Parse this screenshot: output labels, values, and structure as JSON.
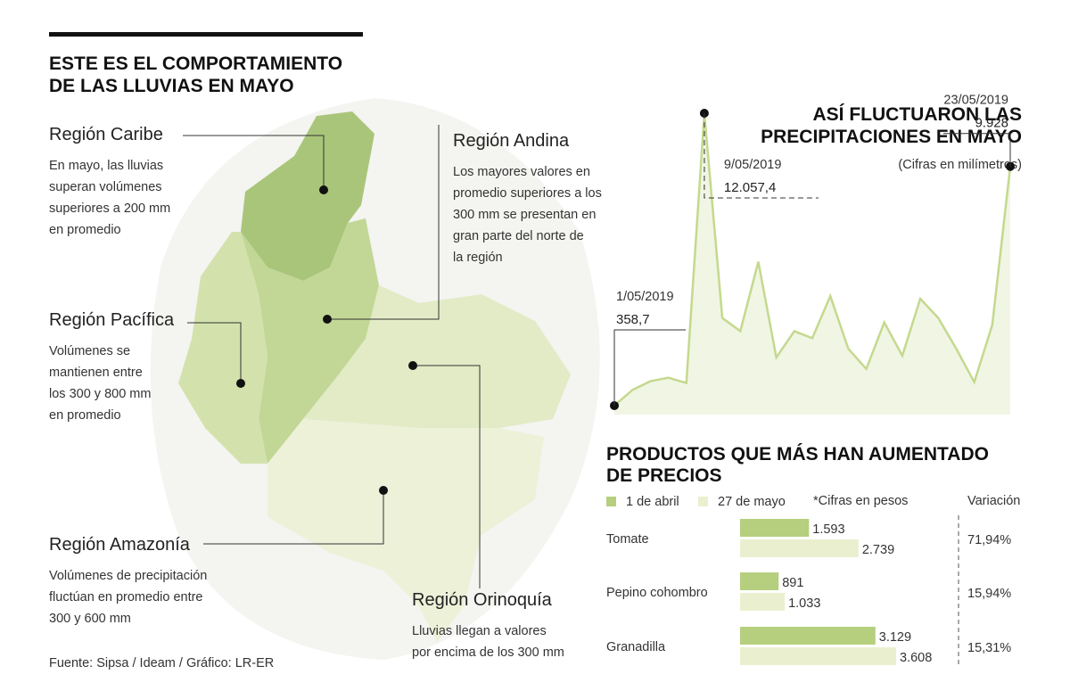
{
  "header": {
    "title": [
      "ESTE ES EL COMPORTAMIENTO",
      "DE LAS LLUVIAS EN MAYO"
    ]
  },
  "regions": [
    {
      "name": "Región Caribe",
      "description": [
        "En mayo, las lluvias",
        "superan volúmenes",
        "superiores a 200 mm",
        "en promedio"
      ]
    },
    {
      "name": "Región Andina",
      "description": [
        "Los mayores valores en",
        "promedio superiores a los",
        "300 mm se presentan en",
        "gran parte del norte de",
        "la región"
      ]
    },
    {
      "name": "Región Pacífica",
      "description": [
        "Volúmenes se",
        "mantienen entre",
        "los 300 y 800 mm",
        "en promedio"
      ]
    },
    {
      "name": "Región Amazonía",
      "description": [
        "Volúmenes de precipitación",
        "fluctúan en promedio entre",
        "300 y 600 mm"
      ]
    },
    {
      "name": "Región Orinoquía",
      "description": [
        "Lluvias llegan a valores",
        "por encima de los 300 mm"
      ]
    }
  ],
  "source": "Fuente: Sipsa / Ideam / Gráfico: LR-ER",
  "chart_data": [
    {
      "type": "area",
      "title": [
        "ASÍ FLUCTUARON LAS",
        "PRECIPITACIONES EN MAYO"
      ],
      "subtitle": "(Cifras en milímetros)",
      "color": "#c4d98e",
      "fill": "#f1f5e4",
      "categories": [
        "1/05/2019",
        null,
        null,
        null,
        null,
        "9/05/2019",
        null,
        null,
        null,
        null,
        null,
        null,
        null,
        null,
        null,
        null,
        null,
        null,
        null,
        null,
        null,
        null,
        "23/05/2019"
      ],
      "values": [
        358.7,
        984,
        1335,
        1476,
        1265,
        12057.4,
        3865,
        3338,
        6114,
        2284,
        3338,
        3057,
        4743,
        2635,
        1827,
        3689,
        2354,
        4638,
        3865,
        2635,
        1300,
        3584,
        9928
      ],
      "value_labels": [
        "358,7",
        null,
        null,
        null,
        null,
        "12.057,4",
        null,
        null,
        null,
        null,
        null,
        null,
        null,
        null,
        null,
        null,
        null,
        null,
        null,
        null,
        null,
        null,
        "9.928"
      ]
    },
    {
      "type": "barh",
      "title": [
        "PRODUCTOS QUE MÁS HAN AUMENTADO",
        "DE PRECIOS"
      ],
      "note": "*Cifras en pesos",
      "categories": [
        "Tomate",
        "Pepino cohombro",
        "Granadilla"
      ],
      "series": [
        {
          "name": "1 de abril",
          "color": "#b5cf7e",
          "values": [
            1593,
            891,
            3129
          ],
          "value_labels": [
            "1.593",
            "891",
            "3.129"
          ]
        },
        {
          "name": "27 de mayo",
          "color": "#eaf0cf",
          "values": [
            2739,
            1033,
            3608
          ],
          "value_labels": [
            "2.739",
            "1.033",
            "3.608"
          ]
        }
      ],
      "variation": {
        "label": "Variación",
        "values": [
          71.94,
          15.94,
          15.31
        ],
        "value_labels": [
          "71,94%",
          "15,94%",
          "15,31%"
        ]
      }
    }
  ]
}
